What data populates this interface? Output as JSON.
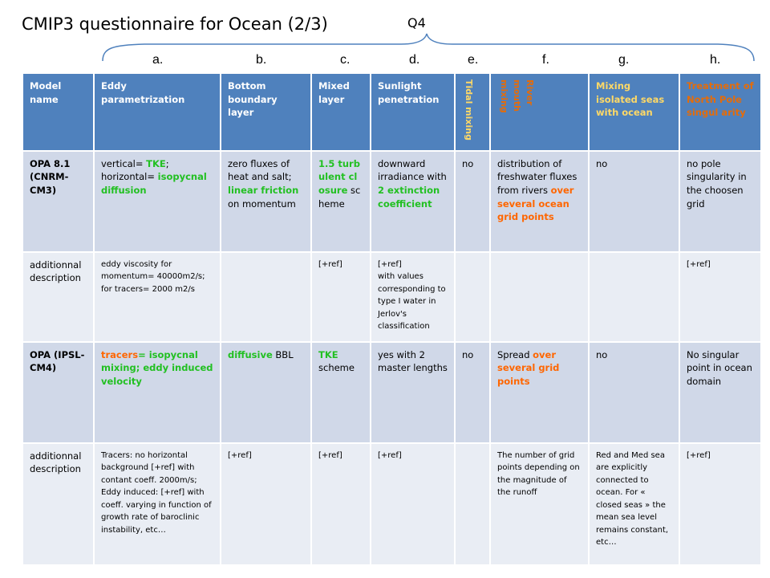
{
  "title": "CMIP3 questionnaire for Ocean (2/3)",
  "q4": "Q4",
  "letters": [
    "a.",
    "b.",
    "c.",
    "d.",
    "e.",
    "f.",
    "g.",
    "h."
  ],
  "header": {
    "model": "Model name",
    "eddy": "Eddy parametrization",
    "bottom": "Bottom boundary layer",
    "mixed": "Mixed layer",
    "sunlight": "Sunlight penetration",
    "tidal": "Tidal mixing",
    "river": "River mouth mixing",
    "isolated": "Mixing isolated seas with ocean",
    "pole": "Treatment of North Pole singul arity"
  },
  "rows": {
    "opa81": {
      "model": "OPA 8.1 (CNRM-CM3)",
      "eddy_1": "vertical= ",
      "eddy_2": "TKE",
      "eddy_3": "; horizontal= ",
      "eddy_4": "isopycnal diffusion",
      "bottom_1": "zero fluxes of heat and salt; ",
      "bottom_2": "linear friction",
      "bottom_3": " on momentum",
      "mixed_1": "1.5 turbulent closure",
      "mixed_2": " scheme",
      "sun_1": "downward irradiance with ",
      "sun_2": "2 extinction coefficient",
      "tidal": "no",
      "river_1": "distribution of freshwater fluxes from rivers ",
      "river_2": "over several ocean grid points",
      "isolated": "no",
      "pole": "no pole singularity in the choosen grid"
    },
    "desc1": {
      "label": "additionnal description",
      "eddy": "eddy viscosity for momentum= 40000m2/s; for tracers= 2000 m2/s",
      "mixed": "[+ref]",
      "sun_1": "[+ref]",
      "sun_2": "with values corresponding to type I water in Jerlov's classification",
      "pole": "[+ref]"
    },
    "opa": {
      "model": "OPA (IPSL-CM4)",
      "eddy_1": "tracers",
      "eddy_2": "= isopycnal mixing; ",
      "eddy_3": "eddy induced velocity",
      "bottom_1": "diffusive",
      "bottom_2": " BBL",
      "mixed_1": "TKE",
      "mixed_2": " scheme",
      "sun": "yes with 2 master lengths",
      "tidal": "no",
      "river_1": "Spread ",
      "river_2": "over",
      "river_3": " several grid points",
      "isolated": "no",
      "pole": "No singular point in ocean domain"
    },
    "desc2": {
      "label": "additionnal description",
      "eddy": "Tracers: no horizontal background [+ref] with contant coeff. 2000m/s; Eddy induced: [+ref] with coeff. varying in function of growth rate of baroclinic instability, etc…",
      "bottom": "[+ref]",
      "mixed": "[+ref]",
      "sun": "[+ref]",
      "river": "The number of grid points depending on the magnitude of the runoff",
      "isolated": "Red and Med sea are explicitly connected to ocean. For « closed seas » the mean sea level remains constant, etc…",
      "pole": "[+ref]"
    }
  },
  "colors": {
    "header_bg": "#4f81bd",
    "main_row_bg": "#d0d8e8",
    "desc_row_bg": "#e9edf4",
    "green": "#22c022",
    "orange": "#ff6600",
    "yellow": "#ffd966",
    "brace": "#4f81bd"
  }
}
